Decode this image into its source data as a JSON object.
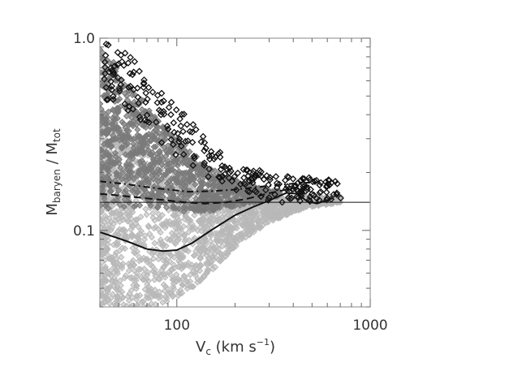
{
  "chart_data": {
    "type": "scatter",
    "title": "",
    "xlabel": {
      "main": "V",
      "sub": "c",
      "rest": " (km s",
      "sup": "−1",
      "close": ")"
    },
    "ylabel": {
      "m1": "M",
      "sub1": "baryen",
      "slash": "  / M",
      "sub2": "tot"
    },
    "xscale": "log",
    "yscale": "log",
    "xlim": [
      40,
      1000
    ],
    "ylim": [
      0.04,
      1.0
    ],
    "x_ticks": [
      {
        "value": 100,
        "label": "100"
      },
      {
        "value": 1000,
        "label": "1000"
      }
    ],
    "y_ticks": [
      {
        "value": 0.1,
        "label": "0.1"
      },
      {
        "value": 1.0,
        "label": "1.0"
      }
    ],
    "grid": false,
    "colors": {
      "light_points": "#b8b8b8",
      "dark_points": "#7a7a7a",
      "black_points": "#111111",
      "lines": "#111111"
    },
    "reference_line": {
      "y": 0.14
    },
    "lines": [
      {
        "style": "solid",
        "points": [
          [
            40,
            0.098
          ],
          [
            55,
            0.088
          ],
          [
            70,
            0.08
          ],
          [
            85,
            0.078
          ],
          [
            100,
            0.079
          ],
          [
            120,
            0.086
          ],
          [
            150,
            0.1
          ],
          [
            200,
            0.12
          ],
          [
            250,
            0.133
          ],
          [
            300,
            0.143
          ],
          [
            370,
            0.157
          ],
          [
            420,
            0.155
          ],
          [
            470,
            0.142
          ],
          [
            530,
            0.138
          ],
          [
            640,
            0.147
          ]
        ]
      },
      {
        "style": "dashed",
        "points": [
          [
            40,
            0.155
          ],
          [
            50,
            0.152
          ],
          [
            65,
            0.148
          ],
          [
            85,
            0.144
          ],
          [
            110,
            0.14
          ],
          [
            140,
            0.138
          ],
          [
            180,
            0.14
          ],
          [
            230,
            0.146
          ],
          [
            300,
            0.156
          ],
          [
            400,
            0.166
          ],
          [
            500,
            0.172
          ]
        ]
      },
      {
        "style": "dash-dot",
        "points": [
          [
            40,
            0.18
          ],
          [
            55,
            0.174
          ],
          [
            70,
            0.168
          ],
          [
            90,
            0.163
          ],
          [
            115,
            0.159
          ],
          [
            150,
            0.16
          ],
          [
            200,
            0.163
          ],
          [
            260,
            0.168
          ],
          [
            330,
            0.172
          ],
          [
            420,
            0.176
          ],
          [
            520,
            0.178
          ]
        ]
      }
    ],
    "point_clouds": [
      {
        "name": "light",
        "color": "#b8b8b8",
        "marker": "diamond",
        "count": 1700,
        "x_range": [
          40,
          700
        ],
        "ridge": [
          [
            40,
            0.42
          ],
          [
            60,
            0.3
          ],
          [
            80,
            0.24
          ],
          [
            100,
            0.2
          ],
          [
            130,
            0.17
          ],
          [
            170,
            0.15
          ],
          [
            250,
            0.15
          ],
          [
            400,
            0.15
          ],
          [
            700,
            0.15
          ]
        ],
        "floor": [
          [
            40,
            0.04
          ],
          [
            80,
            0.04
          ],
          [
            120,
            0.05
          ],
          [
            160,
            0.065
          ],
          [
            220,
            0.09
          ],
          [
            300,
            0.11
          ],
          [
            450,
            0.13
          ],
          [
            700,
            0.14
          ]
        ]
      },
      {
        "name": "dark",
        "color": "#7a7a7a",
        "marker": "diamond",
        "count": 1100,
        "x_range": [
          40,
          340
        ],
        "ridge": [
          [
            40,
            0.95
          ],
          [
            55,
            0.6
          ],
          [
            70,
            0.45
          ],
          [
            90,
            0.34
          ],
          [
            110,
            0.28
          ],
          [
            140,
            0.22
          ],
          [
            180,
            0.19
          ],
          [
            250,
            0.17
          ],
          [
            340,
            0.16
          ]
        ],
        "floor": [
          [
            40,
            0.13
          ],
          [
            80,
            0.13
          ],
          [
            110,
            0.125
          ],
          [
            140,
            0.125
          ],
          [
            180,
            0.13
          ],
          [
            250,
            0.14
          ],
          [
            340,
            0.15
          ]
        ]
      },
      {
        "name": "black",
        "color": "#111111",
        "marker": "diamond",
        "count": 260,
        "x_range": [
          42,
          720
        ],
        "ridge": [
          [
            42,
            1.0
          ],
          [
            60,
            0.8
          ],
          [
            80,
            0.55
          ],
          [
            110,
            0.4
          ],
          [
            150,
            0.28
          ],
          [
            200,
            0.22
          ],
          [
            300,
            0.2
          ],
          [
            450,
            0.19
          ],
          [
            720,
            0.18
          ]
        ],
        "floor": [
          [
            42,
            0.45
          ],
          [
            60,
            0.36
          ],
          [
            80,
            0.28
          ],
          [
            110,
            0.22
          ],
          [
            150,
            0.18
          ],
          [
            200,
            0.15
          ],
          [
            300,
            0.14
          ],
          [
            450,
            0.14
          ],
          [
            720,
            0.14
          ]
        ]
      }
    ]
  }
}
